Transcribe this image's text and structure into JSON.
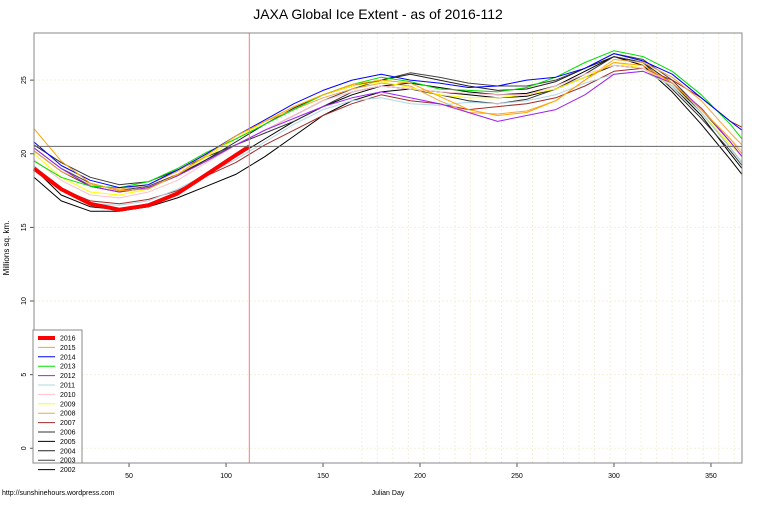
{
  "chart_data": {
    "type": "line",
    "title": "JAXA Global Ice Extent - as of 2016-112",
    "xlabel": "Julian Day",
    "ylabel": "Millions sq. km.",
    "credit": "http://sunshinehours.wordpress.com",
    "xlim": [
      1,
      366
    ],
    "ylim": [
      -1,
      28.2
    ],
    "x_ticks": [
      50,
      100,
      150,
      200,
      250,
      300,
      350
    ],
    "y_ticks": [
      0,
      5,
      10,
      15,
      20,
      25
    ],
    "grid": true,
    "reference_lines": {
      "horizontal_y": 20.5,
      "vertical_x": 112
    },
    "legend_position": "bottom-left",
    "x": [
      1,
      15,
      30,
      45,
      60,
      75,
      90,
      105,
      120,
      135,
      150,
      165,
      180,
      195,
      210,
      225,
      240,
      255,
      270,
      285,
      300,
      315,
      330,
      345,
      360,
      366
    ],
    "series": [
      {
        "name": "2016",
        "color": "#ff0000",
        "x": [
          1,
          15,
          30,
          45,
          60,
          75,
          90,
          105,
          112
        ],
        "values": [
          19.0,
          17.6,
          16.6,
          16.2,
          16.5,
          17.3,
          18.6,
          19.9,
          20.5
        ]
      },
      {
        "name": "2015",
        "color": "#ffa500",
        "values": [
          21.7,
          19.5,
          18.0,
          17.5,
          17.6,
          18.6,
          19.9,
          21.2,
          22.2,
          23.2,
          24.0,
          24.7,
          25.0,
          24.8,
          23.9,
          23.0,
          22.6,
          22.8,
          23.6,
          25.0,
          26.2,
          26.0,
          24.8,
          23.0,
          21.0,
          20.0
        ]
      },
      {
        "name": "2014",
        "color": "#0000ff",
        "values": [
          20.8,
          19.2,
          18.2,
          17.7,
          17.9,
          18.9,
          20.0,
          21.2,
          22.3,
          23.4,
          24.3,
          25.0,
          25.4,
          25.0,
          24.8,
          24.5,
          24.6,
          25.0,
          25.2,
          25.8,
          26.8,
          26.3,
          25.4,
          23.8,
          22.2,
          21.6
        ]
      },
      {
        "name": "2013",
        "color": "#00e000",
        "values": [
          19.5,
          18.4,
          17.8,
          17.7,
          18.1,
          19.0,
          20.1,
          21.0,
          22.0,
          23.0,
          24.0,
          24.7,
          25.2,
          24.9,
          24.4,
          24.3,
          24.2,
          24.5,
          25.2,
          26.2,
          27.0,
          26.6,
          25.6,
          24.0,
          22.0,
          21.0
        ]
      },
      {
        "name": "2012",
        "color": "#a020f0",
        "values": [
          20.4,
          19.0,
          17.8,
          17.4,
          17.7,
          18.5,
          19.5,
          20.6,
          21.6,
          22.4,
          23.2,
          23.8,
          24.2,
          23.8,
          23.4,
          22.8,
          22.2,
          22.6,
          23.0,
          24.0,
          25.4,
          25.6,
          24.8,
          23.1,
          20.8,
          19.8
        ]
      },
      {
        "name": "2011",
        "color": "#add8e6",
        "values": [
          19.2,
          17.6,
          16.6,
          16.5,
          16.8,
          17.6,
          18.6,
          19.6,
          20.8,
          22.0,
          23.0,
          23.6,
          23.8,
          23.4,
          23.3,
          23.5,
          23.4,
          23.6,
          24.0,
          24.8,
          25.4,
          25.6,
          24.6,
          22.8,
          20.4,
          19.4
        ]
      },
      {
        "name": "2010",
        "color": "#ffc0cb",
        "values": [
          19.6,
          18.2,
          17.2,
          17.0,
          17.4,
          18.2,
          19.4,
          20.6,
          21.6,
          22.6,
          23.6,
          24.2,
          24.6,
          24.4,
          24.2,
          24.1,
          24.0,
          24.0,
          24.6,
          25.4,
          26.0,
          25.8,
          24.8,
          23.0,
          21.0,
          20.2
        ]
      },
      {
        "name": "2009",
        "color": "#ffff00",
        "values": [
          20.0,
          18.4,
          17.4,
          17.2,
          17.6,
          18.6,
          19.8,
          21.0,
          22.2,
          23.2,
          24.0,
          24.6,
          24.9,
          24.5,
          24.0,
          23.8,
          23.8,
          24.0,
          24.4,
          25.2,
          26.2,
          25.8,
          24.6,
          22.8,
          20.6,
          19.8
        ]
      },
      {
        "name": "2008",
        "color": "#f4a641",
        "values": [
          20.2,
          18.8,
          17.9,
          17.6,
          17.9,
          18.8,
          20.0,
          21.2,
          22.2,
          23.0,
          23.8,
          24.4,
          24.8,
          24.6,
          23.6,
          22.8,
          22.7,
          22.9,
          23.6,
          25.0,
          26.4,
          26.2,
          25.2,
          23.6,
          21.4,
          20.6
        ]
      },
      {
        "name": "2007",
        "color": "#a52a2a",
        "values": [
          19.0,
          17.6,
          16.8,
          16.6,
          16.9,
          17.5,
          18.5,
          19.4,
          20.6,
          21.6,
          22.6,
          23.4,
          24.0,
          23.6,
          23.4,
          23.0,
          23.2,
          23.4,
          23.8,
          24.6,
          25.6,
          25.8,
          25.0,
          23.8,
          22.2,
          21.8
        ]
      },
      {
        "name": "2006",
        "color": "#333333",
        "values": [
          20.6,
          19.4,
          18.4,
          17.9,
          18.1,
          18.9,
          19.8,
          20.6,
          21.4,
          22.2,
          23.2,
          24.2,
          24.6,
          24.4,
          24.0,
          23.6,
          23.4,
          23.7,
          24.4,
          25.4,
          26.6,
          26.2,
          24.4,
          22.4,
          20.2,
          19.2
        ]
      },
      {
        "name": "2005",
        "color": "#000000",
        "values": [
          19.0,
          17.2,
          16.4,
          16.2,
          16.6,
          17.4,
          18.6,
          19.8,
          21.0,
          22.2,
          23.2,
          24.0,
          24.6,
          24.8,
          24.5,
          24.2,
          24.0,
          24.1,
          24.6,
          25.6,
          26.6,
          26.0,
          24.2,
          22.0,
          19.6,
          18.6
        ]
      },
      {
        "name": "2004",
        "color": "#222222",
        "values": [
          20.2,
          18.8,
          17.8,
          17.4,
          17.7,
          18.5,
          19.6,
          20.8,
          22.0,
          23.1,
          24.0,
          24.6,
          25.0,
          25.4,
          25.0,
          24.6,
          24.3,
          24.4,
          24.9,
          25.8,
          26.6,
          26.2,
          24.8,
          22.8,
          20.4,
          19.4
        ]
      },
      {
        "name": "2003",
        "color": "#444444",
        "values": [
          20.4,
          19.0,
          18.0,
          17.5,
          17.8,
          18.6,
          19.6,
          20.6,
          21.6,
          22.6,
          23.6,
          24.4,
          25.0,
          25.5,
          25.2,
          24.8,
          24.6,
          24.6,
          25.0,
          25.8,
          26.8,
          26.4,
          25.0,
          23.0,
          20.8,
          19.8
        ]
      },
      {
        "name": "2002",
        "color": "#000000",
        "values": [
          18.4,
          16.8,
          16.1,
          16.1,
          16.4,
          17.0,
          17.8,
          18.6,
          19.8,
          21.2,
          22.6,
          23.6,
          24.2,
          24.4,
          24.2,
          24.0,
          23.8,
          23.9,
          24.4,
          25.2,
          26.0,
          25.8,
          24.6,
          22.6,
          20.0,
          19.0
        ]
      }
    ]
  }
}
